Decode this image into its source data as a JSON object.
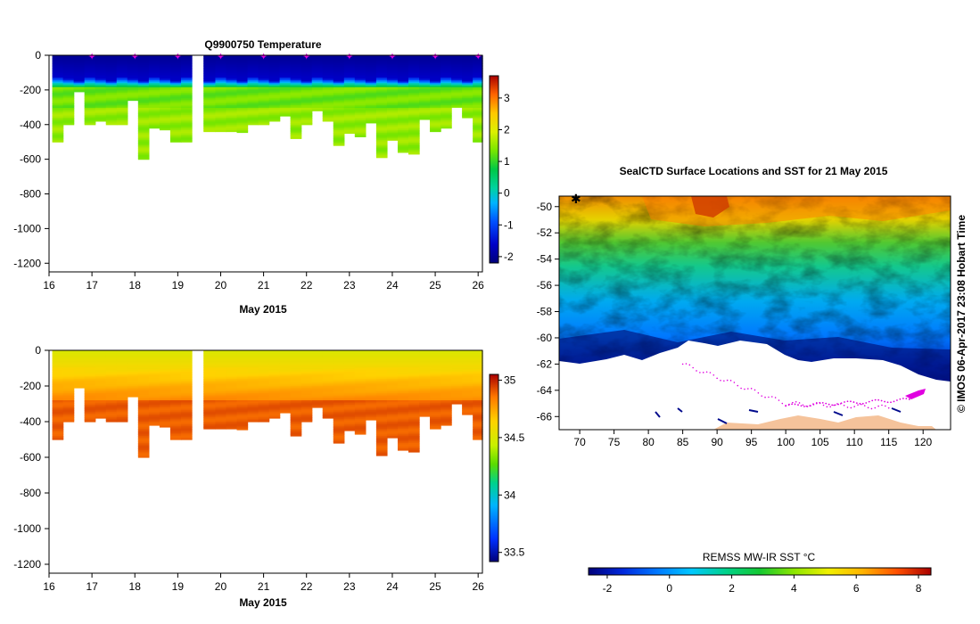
{
  "chart_data": [
    {
      "type": "heatmap",
      "title": "Q9900750  Temperature",
      "xlabel": "May 2015",
      "ylabel": "",
      "xlim": [
        16,
        26.1
      ],
      "ylim": [
        -1250,
        0
      ],
      "x_ticks": [
        16,
        17,
        18,
        19,
        20,
        21,
        22,
        23,
        24,
        25,
        26
      ],
      "y_ticks": [
        0,
        -200,
        -400,
        -600,
        -800,
        -1000,
        -1200
      ],
      "y_tick_labels": [
        "0",
        "-200",
        "-400",
        "-600",
        "-800",
        "-1000",
        "-1200"
      ],
      "colorbar": {
        "ticks": [
          3,
          2,
          1,
          0,
          -1,
          -2
        ],
        "range": [
          -2.2,
          3.7
        ]
      },
      "profile_dates": [
        16.2,
        16.45,
        16.7,
        16.95,
        17.2,
        17.45,
        17.7,
        17.95,
        18.2,
        18.45,
        18.7,
        18.95,
        19.2,
        19.45,
        19.75,
        20.0,
        20.25,
        20.5,
        20.75,
        21.0,
        21.25,
        21.5,
        21.75,
        22.0,
        22.25,
        22.5,
        22.75,
        23.0,
        23.25,
        23.5,
        23.75,
        24.0,
        24.25,
        24.5,
        24.75,
        25.0,
        25.25,
        25.5,
        25.75,
        26.0
      ],
      "profile_max_depth": [
        500,
        400,
        210,
        400,
        380,
        400,
        400,
        260,
        600,
        420,
        430,
        500,
        500,
        0,
        440,
        440,
        440,
        445,
        400,
        400,
        380,
        350,
        480,
        400,
        320,
        380,
        520,
        450,
        470,
        390,
        590,
        490,
        560,
        570,
        370,
        440,
        420,
        300,
        360,
        500
      ],
      "profile_markers": [
        17,
        18,
        19,
        20,
        21,
        22,
        23,
        24,
        25,
        26
      ],
      "surface_value": -2.0,
      "thermocline_depth": [
        120,
        160
      ],
      "deep_value": 1.3
    },
    {
      "type": "heatmap",
      "title": "",
      "xlabel": "May 2015",
      "ylabel": "",
      "xlim": [
        16,
        26.1
      ],
      "ylim": [
        -1250,
        0
      ],
      "x_ticks": [
        16,
        17,
        18,
        19,
        20,
        21,
        22,
        23,
        24,
        25,
        26
      ],
      "y_ticks": [
        0,
        -200,
        -400,
        -600,
        -800,
        -1000,
        -1200
      ],
      "y_tick_labels": [
        "0",
        "-200",
        "-400",
        "-600",
        "-800",
        "-1000",
        "-1200"
      ],
      "colorbar": {
        "ticks": [
          35,
          34.5,
          34,
          33.5
        ],
        "range": [
          33.42,
          35.05
        ],
        "tick_labels": [
          "35",
          "34.5",
          "34",
          "33.5"
        ]
      },
      "profile_dates": [
        16.2,
        16.45,
        16.7,
        16.95,
        17.2,
        17.45,
        17.7,
        17.95,
        18.2,
        18.45,
        18.7,
        18.95,
        19.2,
        19.45,
        19.75,
        20.0,
        20.25,
        20.5,
        20.75,
        21.0,
        21.25,
        21.5,
        21.75,
        22.0,
        22.25,
        22.5,
        22.75,
        23.0,
        23.25,
        23.5,
        23.75,
        24.0,
        24.25,
        24.5,
        24.75,
        25.0,
        25.25,
        25.5,
        25.75,
        26.0
      ],
      "profile_max_depth": [
        500,
        400,
        210,
        400,
        380,
        400,
        400,
        260,
        600,
        420,
        430,
        500,
        500,
        0,
        440,
        440,
        440,
        445,
        400,
        400,
        380,
        350,
        480,
        400,
        320,
        380,
        520,
        450,
        470,
        390,
        590,
        490,
        560,
        570,
        370,
        440,
        420,
        300,
        360,
        500
      ],
      "surface_value": 34.5,
      "deep_value": 34.85
    },
    {
      "type": "heatmap",
      "title": "SealCTD Surface Locations and SST for 21 May 2015",
      "xlim": [
        67,
        124
      ],
      "ylim": [
        -67,
        -49.2
      ],
      "x_ticks": [
        70,
        75,
        80,
        85,
        90,
        95,
        100,
        105,
        110,
        115,
        120
      ],
      "y_ticks": [
        -50,
        -52,
        -54,
        -56,
        -58,
        -60,
        -62,
        -64,
        -66
      ],
      "y_tick_labels": [
        "-50",
        "-52",
        "-54",
        "-56",
        "-58",
        "-60",
        "-62",
        "-64",
        "-66"
      ],
      "ice_edge_lat": -62.3,
      "colorbar": {
        "label": "REMSS MW-IR SST °C",
        "ticks": [
          -2,
          0,
          2,
          4,
          6,
          8
        ],
        "tick_labels": [
          "-2",
          "0",
          "2",
          "4",
          "6",
          "8"
        ],
        "range": [
          -2.6,
          8.4
        ]
      },
      "credit": "© IMOS 06-Apr-2017 23:08 Hobart Time"
    }
  ]
}
